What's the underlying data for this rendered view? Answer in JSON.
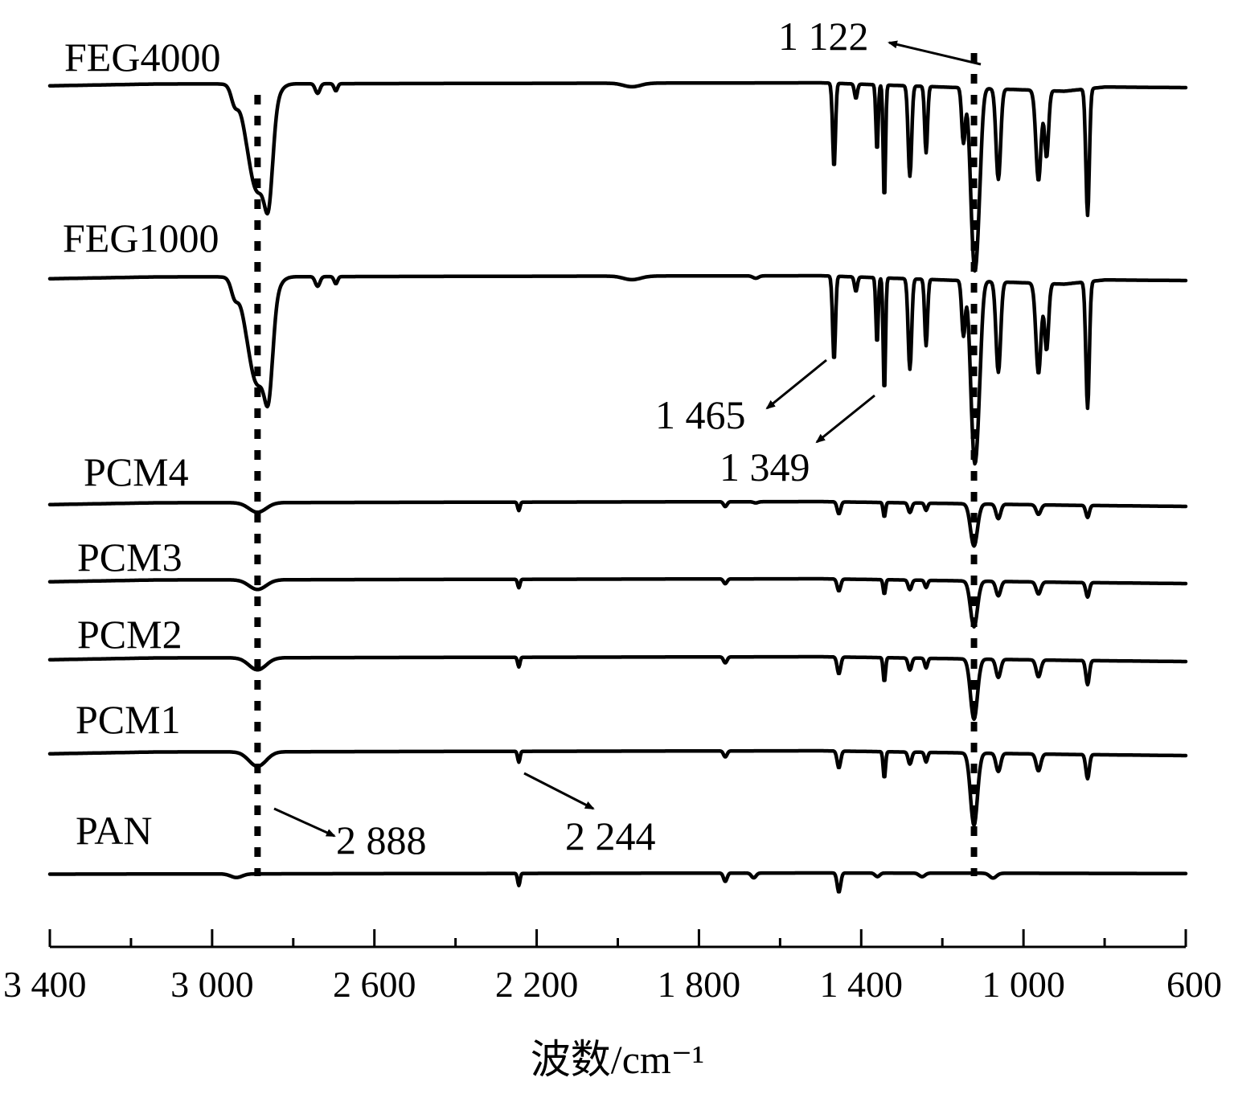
{
  "chart_data": {
    "type": "line",
    "xlabel": "波数/cm⁻¹",
    "xlim": [
      3400,
      600
    ],
    "x_ticks": [
      "3 400",
      "3 000",
      "2 600",
      "2 200",
      "1 800",
      "1 400",
      "1 000",
      "600"
    ],
    "x_tick_values": [
      3400,
      3000,
      2600,
      2200,
      1800,
      1400,
      1000,
      600
    ],
    "x_minor_ticks": [
      3200,
      2800,
      2400,
      2000,
      1600,
      1200,
      800
    ],
    "guide_lines_wavenumber": [
      2888,
      1122
    ],
    "series": [
      {
        "name": "FEG4000",
        "baseline": 0.975,
        "tilt": [
          [
            3400,
            0.975
          ],
          [
            3140,
            0.99
          ],
          [
            1500,
            1.0
          ],
          [
            900,
            0.93
          ],
          [
            800,
            0.965
          ],
          [
            600,
            0.96
          ]
        ],
        "bands": [
          [
            2888,
            0.89,
            36
          ],
          [
            2860,
            0.55,
            14
          ],
          [
            2945,
            0.12,
            12
          ],
          [
            2740,
            0.08,
            8
          ],
          [
            2695,
            0.06,
            6
          ],
          [
            1965,
            0.03,
            30
          ],
          [
            1467,
            0.7,
            5
          ],
          [
            1413,
            0.12,
            5
          ],
          [
            1361,
            0.55,
            4
          ],
          [
            1343,
            0.95,
            4
          ],
          [
            1280,
            0.75,
            6
          ],
          [
            1240,
            0.55,
            5
          ],
          [
            1148,
            0.45,
            6
          ],
          [
            1122,
            1.35,
            12
          ],
          [
            1110,
            0.55,
            10
          ],
          [
            1062,
            0.75,
            8
          ],
          [
            963,
            0.75,
            9
          ],
          [
            943,
            0.55,
            7
          ],
          [
            842,
            1.05,
            6
          ]
        ]
      },
      {
        "name": "FEG1000",
        "baseline": 0.975,
        "tilt": [
          [
            3400,
            0.975
          ],
          [
            3140,
            0.99
          ],
          [
            1500,
            1.0
          ],
          [
            900,
            0.93
          ],
          [
            800,
            0.965
          ],
          [
            600,
            0.96
          ]
        ],
        "bands": [
          [
            2888,
            0.89,
            36
          ],
          [
            2860,
            0.55,
            14
          ],
          [
            2945,
            0.12,
            12
          ],
          [
            2740,
            0.08,
            8
          ],
          [
            2695,
            0.06,
            6
          ],
          [
            1965,
            0.03,
            30
          ],
          [
            1660,
            0.02,
            10
          ],
          [
            1467,
            0.7,
            5
          ],
          [
            1413,
            0.12,
            5
          ],
          [
            1361,
            0.55,
            4
          ],
          [
            1343,
            0.95,
            4
          ],
          [
            1280,
            0.75,
            6
          ],
          [
            1240,
            0.55,
            5
          ],
          [
            1148,
            0.45,
            6
          ],
          [
            1122,
            1.35,
            12
          ],
          [
            1110,
            0.55,
            10
          ],
          [
            1062,
            0.75,
            8
          ],
          [
            963,
            0.75,
            9
          ],
          [
            943,
            0.55,
            7
          ],
          [
            842,
            1.05,
            6
          ]
        ]
      },
      {
        "name": "PCM4",
        "baseline": 0.98,
        "tilt": [
          [
            3400,
            0.975
          ],
          [
            3140,
            0.99
          ],
          [
            1500,
            1.0
          ],
          [
            900,
            0.97
          ],
          [
            600,
            0.96
          ]
        ],
        "bands": [
          [
            2888,
            0.08,
            30
          ],
          [
            2244,
            0.07,
            4
          ],
          [
            1735,
            0.04,
            6
          ],
          [
            1660,
            0.01,
            8
          ],
          [
            1455,
            0.1,
            6
          ],
          [
            1343,
            0.12,
            4
          ],
          [
            1280,
            0.08,
            6
          ],
          [
            1240,
            0.06,
            5
          ],
          [
            1122,
            0.35,
            12
          ],
          [
            1062,
            0.12,
            8
          ],
          [
            963,
            0.08,
            8
          ],
          [
            842,
            0.1,
            6
          ]
        ]
      },
      {
        "name": "PCM3",
        "baseline": 0.98,
        "tilt": [
          [
            3400,
            0.975
          ],
          [
            3140,
            0.99
          ],
          [
            1500,
            1.0
          ],
          [
            900,
            0.97
          ],
          [
            600,
            0.96
          ]
        ],
        "bands": [
          [
            2888,
            0.08,
            30
          ],
          [
            2244,
            0.07,
            4
          ],
          [
            1735,
            0.04,
            6
          ],
          [
            1455,
            0.1,
            6
          ],
          [
            1343,
            0.12,
            4
          ],
          [
            1280,
            0.08,
            6
          ],
          [
            1240,
            0.06,
            5
          ],
          [
            1122,
            0.38,
            12
          ],
          [
            1062,
            0.12,
            8
          ],
          [
            963,
            0.1,
            8
          ],
          [
            842,
            0.12,
            6
          ]
        ]
      },
      {
        "name": "PCM2",
        "baseline": 0.98,
        "tilt": [
          [
            3400,
            0.975
          ],
          [
            3140,
            0.99
          ],
          [
            1500,
            1.0
          ],
          [
            900,
            0.97
          ],
          [
            600,
            0.96
          ]
        ],
        "bands": [
          [
            2888,
            0.1,
            30
          ],
          [
            2244,
            0.08,
            4
          ],
          [
            1735,
            0.05,
            6
          ],
          [
            1455,
            0.14,
            6
          ],
          [
            1343,
            0.2,
            4
          ],
          [
            1280,
            0.1,
            6
          ],
          [
            1240,
            0.08,
            5
          ],
          [
            1122,
            0.5,
            12
          ],
          [
            1062,
            0.15,
            8
          ],
          [
            963,
            0.14,
            8
          ],
          [
            842,
            0.2,
            6
          ]
        ]
      },
      {
        "name": "PCM1",
        "baseline": 0.98,
        "tilt": [
          [
            3400,
            0.975
          ],
          [
            3140,
            0.99
          ],
          [
            1500,
            1.0
          ],
          [
            900,
            0.97
          ],
          [
            600,
            0.96
          ]
        ],
        "bands": [
          [
            2888,
            0.12,
            30
          ],
          [
            2244,
            0.09,
            4
          ],
          [
            1735,
            0.05,
            6
          ],
          [
            1455,
            0.14,
            6
          ],
          [
            1343,
            0.22,
            4
          ],
          [
            1280,
            0.1,
            6
          ],
          [
            1240,
            0.08,
            5
          ],
          [
            1122,
            0.6,
            12
          ],
          [
            1062,
            0.15,
            8
          ],
          [
            963,
            0.14,
            8
          ],
          [
            842,
            0.2,
            6
          ]
        ]
      },
      {
        "name": "PAN",
        "baseline": 0.99,
        "tilt": [
          [
            3400,
            0.99
          ],
          [
            1500,
            1.0
          ],
          [
            600,
            0.995
          ]
        ],
        "bands": [
          [
            2940,
            0.03,
            20
          ],
          [
            2244,
            0.1,
            4
          ],
          [
            1735,
            0.07,
            6
          ],
          [
            1665,
            0.04,
            8
          ],
          [
            1455,
            0.16,
            6
          ],
          [
            1360,
            0.03,
            8
          ],
          [
            1250,
            0.03,
            10
          ],
          [
            1075,
            0.04,
            12
          ]
        ]
      }
    ],
    "annotations": [
      {
        "text": "1 122",
        "target": 1122
      },
      {
        "text": "1 465",
        "target": 1465
      },
      {
        "text": "1 349",
        "target": 1349
      },
      {
        "text": "2 888",
        "target": 2888
      },
      {
        "text": "2 244",
        "target": 2244
      }
    ]
  }
}
